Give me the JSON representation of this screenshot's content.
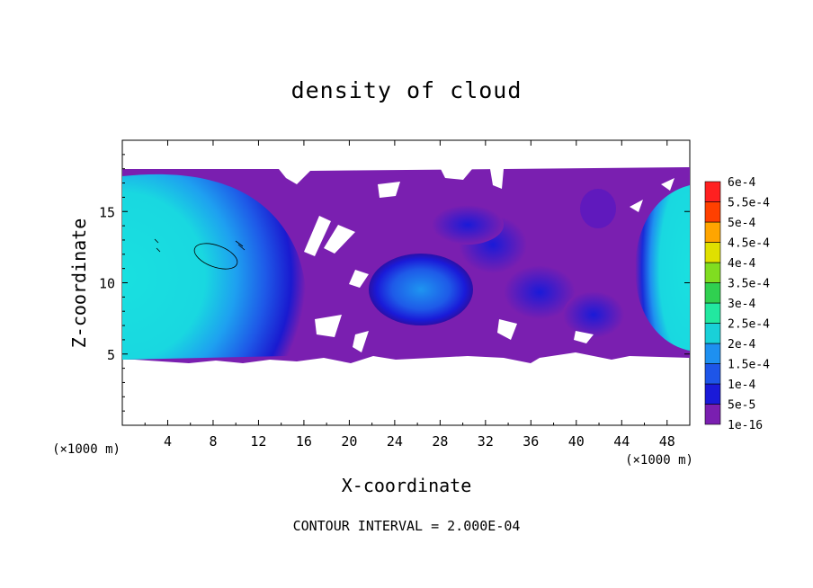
{
  "chart_data": {
    "type": "heatmap",
    "title": "density of cloud",
    "xlabel": "X-coordinate",
    "ylabel": "Z-coordinate",
    "x_unit": "(×1000 m)",
    "y_unit": "(×1000 m)",
    "xlim": [
      0,
      50
    ],
    "ylim": [
      0,
      20
    ],
    "x_ticks": [
      "4",
      "8",
      "12",
      "16",
      "20",
      "24",
      "28",
      "32",
      "36",
      "40",
      "44",
      "48"
    ],
    "y_ticks": [
      "5",
      "10",
      "15"
    ],
    "footer": "CONTOUR INTERVAL = 2.000E-04",
    "colorbar": {
      "labels": [
        "1e-16",
        "5e-5",
        "1e-4",
        "1.5e-4",
        "2e-4",
        "2.5e-4",
        "3e-4",
        "3.5e-4",
        "4e-4",
        "4.5e-4",
        "5e-4",
        "5.5e-4",
        "6e-4"
      ],
      "colors": [
        "#7a1fb0",
        "#2a0aa0",
        "#1a1ad8",
        "#1e55e8",
        "#1e90f0",
        "#19d0d8",
        "#22e8a0",
        "#30d050",
        "#80dd20",
        "#e0e000",
        "#ffa500",
        "#ff4000",
        "#ff2020",
        "#ff8080"
      ]
    }
  }
}
